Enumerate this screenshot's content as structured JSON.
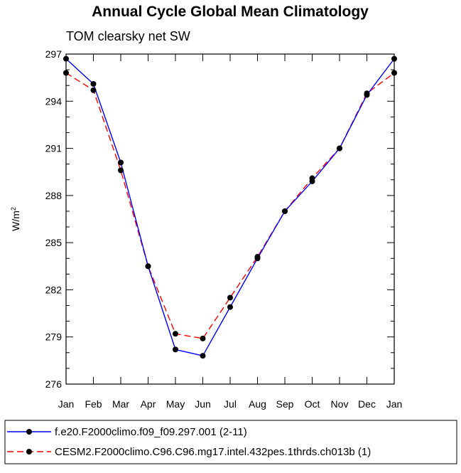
{
  "chart_data": {
    "type": "line",
    "title": "Annual Cycle Global Mean Climatology",
    "subtitle": "TOM clearsky net SW",
    "ylabel": "W/m",
    "ylabel_superscript": "2",
    "xlabel": "",
    "categories": [
      "Jan",
      "Feb",
      "Mar",
      "Apr",
      "May",
      "Jun",
      "Jul",
      "Aug",
      "Sep",
      "Oct",
      "Nov",
      "Dec",
      "Jan"
    ],
    "ylim": [
      276,
      297
    ],
    "yticks": [
      276,
      279,
      282,
      285,
      288,
      291,
      294,
      297
    ],
    "ytick_labels": [
      "276",
      "279",
      "282",
      "285",
      "288",
      "291",
      "294",
      "297"
    ],
    "legend_position": "bottom",
    "series": [
      {
        "name": "f.e20.F2000climo.f09_f09.297.001 (2-11)",
        "color": "#0000ff",
        "line_style": "solid",
        "marker": "filled-circle",
        "values": [
          296.7,
          295.1,
          290.1,
          283.5,
          278.2,
          277.8,
          280.9,
          284.0,
          287.0,
          288.9,
          291.0,
          294.4,
          296.7
        ]
      },
      {
        "name": "CESM2.F2000climo.C96.C96.mg17.intel.432pes.1thrds.ch013b (1)",
        "color": "#ff0000",
        "line_style": "dashed",
        "marker": "filled-circle",
        "values": [
          295.8,
          294.7,
          289.6,
          283.5,
          279.2,
          278.9,
          281.5,
          284.1,
          287.0,
          289.1,
          291.0,
          294.5,
          295.8
        ]
      }
    ]
  }
}
